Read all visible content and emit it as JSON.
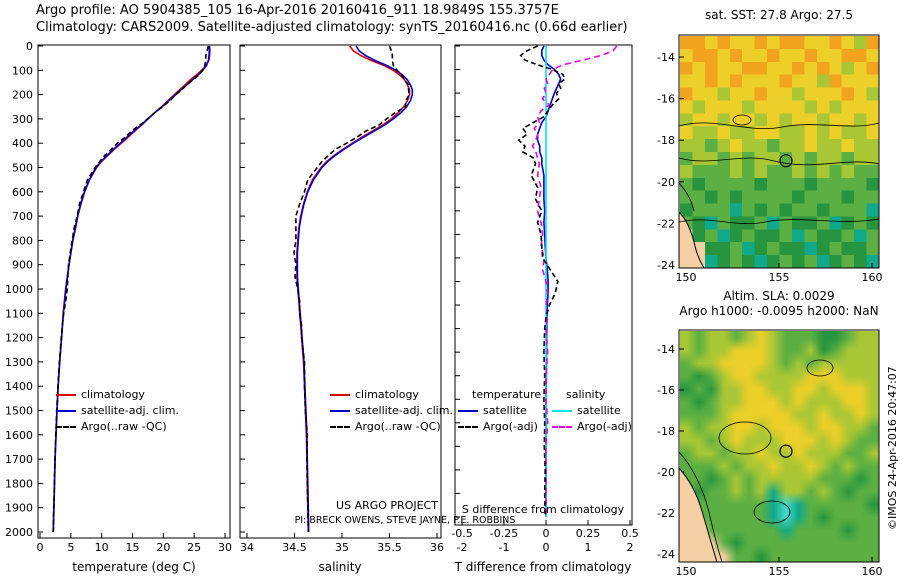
{
  "header": {
    "line1": "Argo profile: AO 5904385_105 16-Apr-2016 20160416_911 18.9849S 155.3757E",
    "line2": "Climatology: CARS2009. Satellite-adjusted climatology: synTS_20160416.nc (0.66d earlier)"
  },
  "watermark": "©IMOS 24-Apr-2016 20:47:07",
  "chart_data": {
    "depths": [
      0,
      20,
      40,
      60,
      80,
      100,
      120,
      140,
      160,
      180,
      200,
      225,
      250,
      275,
      300,
      325,
      350,
      375,
      400,
      425,
      450,
      475,
      500,
      550,
      600,
      650,
      700,
      750,
      800,
      850,
      900,
      950,
      1000,
      1050,
      1100,
      1150,
      1200,
      1300,
      1400,
      1500,
      1600,
      1700,
      1800,
      1900,
      2000
    ],
    "temperature": {
      "type": "line",
      "xlabel": "temperature (deg C)",
      "xlim": [
        0,
        30
      ],
      "ylim": [
        0,
        2050
      ],
      "xticks": [
        0,
        5,
        10,
        15,
        20,
        25,
        30
      ],
      "yticks": [
        0,
        100,
        200,
        300,
        400,
        500,
        600,
        700,
        800,
        900,
        1000,
        1100,
        1200,
        1300,
        1400,
        1500,
        1600,
        1700,
        1800,
        1900,
        2000
      ],
      "legend": [
        {
          "label": "climatology",
          "color": "#dd0000",
          "dash": false
        },
        {
          "label": "satellite-adj. clim.",
          "color": "#0000cc",
          "dash": false
        },
        {
          "label": "Argo(..raw -QC)",
          "color": "#000000",
          "dash": true
        }
      ],
      "series": [
        {
          "name": "climatology",
          "color": "#dd0000",
          "dash": "",
          "values": [
            27.5,
            27.55,
            27.5,
            27.35,
            26.95,
            26.2,
            25.3,
            24.35,
            23.5,
            22.65,
            21.8,
            20.75,
            19.7,
            18.55,
            17.5,
            16.5,
            15.35,
            14.3,
            13.2,
            12.05,
            11.05,
            10.0,
            9.2,
            8.05,
            7.25,
            6.65,
            6.13,
            5.75,
            5.33,
            5.02,
            4.7,
            4.42,
            4.15,
            3.95,
            3.77,
            3.63,
            3.48,
            3.19,
            2.94,
            2.75,
            2.6,
            2.45,
            2.35,
            2.25,
            2.15
          ]
        },
        {
          "name": "satellite-adj-clim",
          "color": "#0000cc",
          "dash": "",
          "values": [
            27.45,
            27.45,
            27.4,
            27.3,
            27.0,
            26.4,
            25.6,
            24.7,
            23.8,
            22.9,
            22.0,
            20.9,
            19.8,
            18.6,
            17.5,
            16.4,
            15.2,
            14.1,
            13.0,
            11.9,
            10.9,
            9.9,
            9.1,
            8.0,
            7.2,
            6.6,
            6.1,
            5.7,
            5.3,
            5.0,
            4.7,
            4.45,
            4.2,
            4.0,
            3.8,
            3.65,
            3.5,
            3.2,
            2.95,
            2.75,
            2.6,
            2.45,
            2.35,
            2.25,
            2.15
          ]
        },
        {
          "name": "argo-raw-qc",
          "color": "#000000",
          "dash": "5,3",
          "values": [
            27.3,
            27.1,
            26.9,
            26.85,
            26.75,
            26.35,
            25.7,
            24.8,
            23.8,
            23.0,
            22.05,
            21.05,
            19.85,
            18.6,
            17.45,
            16.2,
            14.8,
            13.85,
            12.55,
            11.55,
            10.5,
            9.7,
            8.95,
            7.7,
            7.05,
            6.4,
            6.03,
            5.55,
            5.21,
            4.92,
            4.62,
            4.52,
            4.43,
            4.17,
            3.85,
            3.63,
            3.45,
            3.14,
            2.91,
            2.7,
            2.57,
            2.41,
            2.33,
            2.22,
            2.13
          ]
        }
      ]
    },
    "salinity": {
      "type": "line",
      "xlabel": "salinity",
      "xlim": [
        34,
        36
      ],
      "ylim": [
        0,
        2050
      ],
      "xticks": [
        34,
        34.5,
        35,
        35.5,
        36
      ],
      "note1": "US ARGO PROJECT",
      "note2": "PI: BRECK OWENS, STEVE JAYNE, P.E. ROBBINS",
      "legend": [
        {
          "label": "climatology",
          "color": "#dd0000",
          "dash": false
        },
        {
          "label": "satellite-adj. clim.",
          "color": "#0000cc",
          "dash": false
        },
        {
          "label": "Argo(..raw -QC)",
          "color": "#000000",
          "dash": true
        }
      ],
      "series": [
        {
          "name": "climatology",
          "color": "#dd0000",
          "dash": "",
          "values": [
            35.08,
            35.12,
            35.2,
            35.31,
            35.44,
            35.54,
            35.61,
            35.66,
            35.69,
            35.71,
            35.71,
            35.69,
            35.65,
            35.59,
            35.52,
            35.43,
            35.32,
            35.21,
            35.11,
            35.01,
            34.92,
            34.84,
            34.78,
            34.69,
            34.635,
            34.595,
            34.565,
            34.545,
            34.535,
            34.525,
            34.525,
            34.525,
            34.535,
            34.545,
            34.555,
            34.565,
            34.575,
            34.595,
            34.605,
            34.615,
            34.625,
            34.63,
            34.635,
            34.64,
            34.645
          ]
        },
        {
          "name": "satellite-adj-clim",
          "color": "#0000cc",
          "dash": "",
          "values": [
            35.15,
            35.18,
            35.25,
            35.35,
            35.47,
            35.57,
            35.64,
            35.69,
            35.72,
            35.74,
            35.74,
            35.72,
            35.68,
            35.62,
            35.54,
            35.45,
            35.34,
            35.23,
            35.12,
            35.02,
            34.93,
            34.85,
            34.79,
            34.7,
            34.64,
            34.6,
            34.57,
            34.55,
            34.54,
            34.53,
            34.53,
            34.53,
            34.54,
            34.55,
            34.56,
            34.57,
            34.58,
            34.6,
            34.61,
            34.62,
            34.63,
            34.635,
            34.64,
            34.645,
            34.65
          ]
        },
        {
          "name": "argo-raw-qc",
          "color": "#000000",
          "dash": "5,3",
          "values": [
            35.5,
            35.52,
            35.53,
            35.53,
            35.54,
            35.58,
            35.63,
            35.66,
            35.7,
            35.7,
            35.71,
            35.67,
            35.67,
            35.56,
            35.47,
            35.39,
            35.25,
            35.16,
            35.05,
            34.93,
            34.86,
            34.79,
            34.74,
            34.64,
            34.605,
            34.555,
            34.515,
            34.515,
            34.515,
            34.495,
            34.515,
            34.505,
            34.535,
            34.555,
            34.555,
            34.575,
            34.575,
            34.605,
            34.605,
            34.615,
            34.635,
            34.63,
            34.635,
            34.64,
            34.645
          ]
        }
      ]
    },
    "difference": {
      "type": "line",
      "xlabel_t": "T difference from climatology",
      "label_s": "S difference from climatology",
      "xlim_t": [
        -2.2,
        2.05
      ],
      "xlim_s": [
        -0.55,
        0.51
      ],
      "xticks_t": [
        -2,
        -1,
        0,
        1,
        2
      ],
      "xticks_s": [
        -0.5,
        -0.25,
        0,
        0.25,
        0.5
      ],
      "legend_t": {
        "header": "temperature",
        "items": [
          {
            "label": "satellite",
            "color": "#0000cc",
            "dash": false
          },
          {
            "label": "Argo(-adj)",
            "color": "#000000",
            "dash": true
          }
        ]
      },
      "legend_s": {
        "header": "salinity",
        "items": [
          {
            "label": "satellite",
            "color": "#00e5e5",
            "dash": false
          },
          {
            "label": "Argo(-adj)",
            "color": "#e800e8",
            "dash": true
          }
        ]
      },
      "series": [
        {
          "name": "t-satellite",
          "scale": "t",
          "color": "#0000cc",
          "dash": "",
          "values": [
            -0.05,
            -0.1,
            -0.1,
            -0.05,
            0.05,
            0.2,
            0.3,
            0.35,
            0.3,
            0.25,
            0.2,
            0.15,
            0.1,
            0.05,
            0.0,
            -0.1,
            -0.15,
            -0.2,
            -0.2,
            -0.15,
            -0.15,
            -0.1,
            -0.1,
            -0.05,
            -0.05,
            -0.05,
            -0.03,
            -0.05,
            -0.03,
            -0.02,
            0.0,
            0.03,
            0.05,
            0.05,
            0.03,
            0.02,
            0.02,
            0.01,
            0.01,
            0.0,
            0.0,
            0.0,
            0.0,
            0.0,
            0.0
          ]
        },
        {
          "name": "s-satellite",
          "scale": "s",
          "color": "#00e5e5",
          "dash": "",
          "values": [
            0,
            0,
            0,
            0,
            0,
            0,
            0,
            0,
            0,
            0,
            0,
            0,
            0,
            0,
            0,
            0,
            0,
            0,
            0,
            0,
            0,
            0,
            0,
            0,
            0,
            0,
            0,
            0,
            0,
            0,
            0,
            0,
            0,
            0,
            0,
            0,
            0,
            0,
            0,
            0,
            0,
            0,
            0,
            0,
            0
          ]
        },
        {
          "name": "s-argo-adj",
          "scale": "s",
          "color": "#e800e8",
          "dash": "6,4",
          "values": [
            0.42,
            0.4,
            0.33,
            0.22,
            0.1,
            0.04,
            0.02,
            0.0,
            0.01,
            -0.01,
            0.0,
            -0.02,
            0.02,
            -0.03,
            -0.05,
            -0.04,
            -0.07,
            -0.05,
            -0.06,
            -0.08,
            -0.06,
            -0.05,
            -0.04,
            -0.05,
            -0.03,
            -0.04,
            -0.05,
            -0.03,
            -0.02,
            -0.03,
            -0.01,
            -0.02,
            0.0,
            0.01,
            0.0,
            0.01,
            0.0,
            0.01,
            0.0,
            0.0,
            0.01,
            0.0,
            0.0,
            0.0,
            0.0
          ]
        },
        {
          "name": "t-argo-adj",
          "scale": "t",
          "color": "#000000",
          "dash": "5,3",
          "values": [
            -0.2,
            -0.45,
            -0.6,
            -0.5,
            -0.2,
            0.15,
            0.4,
            0.45,
            0.3,
            0.35,
            0.25,
            0.3,
            0.15,
            0.05,
            -0.05,
            -0.3,
            -0.55,
            -0.45,
            -0.65,
            -0.5,
            -0.55,
            -0.3,
            -0.25,
            -0.35,
            -0.2,
            -0.25,
            -0.1,
            -0.2,
            -0.12,
            -0.1,
            -0.08,
            0.1,
            0.28,
            0.22,
            0.08,
            0.0,
            -0.03,
            -0.05,
            -0.03,
            -0.05,
            -0.03,
            -0.04,
            -0.02,
            -0.03,
            -0.02
          ]
        }
      ]
    },
    "palette": {
      "O": "#f2a41e",
      "Y": "#edcf29",
      "G": "#a9c735",
      "g": "#5cb043",
      "D": "#27953f",
      "T": "#11a98c",
      "C": "#45d8c8",
      "L": "#f4cfa4"
    },
    "sst_map": {
      "type": "heatmap",
      "title": "sat. SST: 27.8 Argo: 27.5",
      "lon_ticks": [
        150,
        155,
        160
      ],
      "lat_ticks": [
        -14,
        -16,
        -18,
        -20,
        -22,
        -24
      ],
      "float_marker": {
        "lon": 155.3757,
        "lat": -18.9849
      },
      "rows": [
        "OOYOYYOYOOYYOYGO",
        "YOOYOYYOYYOYYOOY",
        "OYOYYOOYYOYOYGYO",
        "YYOYOYYYOYYGOYYY",
        "OYYGYYOYYGYYYOYG",
        "YGYYYGYYYYGYGYYY",
        "GYYGYYGYGYYGYYGY",
        "YGGYGGYYGGYGYGGY",
        "GGgGYGGgGGYGGYGG",
        "gGGgGgGGgGgGGgGG",
        "GgggGgGggGgGgGgg",
        "gDggggDgggDggggD",
        "ggDgDggggDgggDgg",
        "DgggTgDgDggDgggT",
        "gDTgDDgTgDDgTDgD",
        "LDgTDgDDgTgDDgTg",
        "LLDDgTDgDDTDgDDg",
        "LLTDgDTDgDgTDgDT"
      ]
    },
    "sla_map": {
      "type": "heatmap",
      "title1": "Altim. SLA: 0.0029",
      "title2": "Argo h1000: -0.0095 h2000: NaN",
      "lon_ticks": [
        150,
        155,
        160
      ],
      "lat_ticks": [
        -14,
        -16,
        -18,
        -20,
        -22,
        -24
      ],
      "float_marker": {
        "lon": 155.3757,
        "lat": -18.9849
      },
      "rows": [
        "GgGGgGYGgggDDgGG",
        "GgGGYYYGggGDgGGG",
        "gGGYYYYGgGgGGGGG",
        "gDgGYYGGGGYYYGGG",
        "DgDGGYYGGYYGYYYG",
        "gDgGGYYYGYGGGYYG",
        "gggGYYYYYGGYGGYG",
        "GgGGYYGYYYGYYGGg",
        "GGgGYGGGYYYGYGgg",
        "gGGgGGYGGYGGGggG",
        "gggGgGGYGGYGgGgg",
        "ggDgGgGGGGGgggDg",
        "gDggGgGTGGgGgDgg",
        "gggggggTCTgggggD",
        "LggggggTCTgDgggg",
        "LLggggggTggggDgg",
        "LLLgDggggggggggg",
        "LLLLggDggggggggg"
      ]
    }
  }
}
